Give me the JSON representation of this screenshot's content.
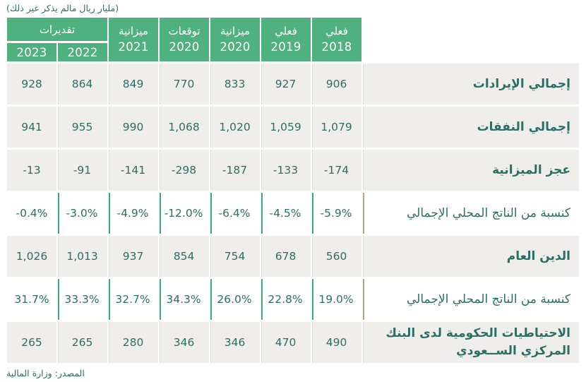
{
  "note_top": "(مليار ريال مالم يذكر غير ذلك)",
  "source": "المصدر: وزارة المالية",
  "colors": {
    "header_green": "#4FB080",
    "teal_text": "#2B6E66",
    "gray_row_bg": "#EFEEEB",
    "gray_row_divider": "#DBDAD7",
    "white_row_divider_green": "#3BA878",
    "label_divider_tan": "#B3A284"
  },
  "chart_data": {
    "type": "table",
    "unit_note": "(مليار ريال مالم يذكر غير ذلك)",
    "source": "المصدر: وزارة المالية",
    "header": {
      "group_label": "تقديرات",
      "single_columns": [
        {
          "label": "فعلي",
          "year": "2018"
        },
        {
          "label": "فعلي",
          "year": "2019"
        },
        {
          "label": "ميزانية",
          "year": "2020"
        },
        {
          "label": "توقعات",
          "year": "2020"
        },
        {
          "label": "ميزانية",
          "year": "2021"
        }
      ],
      "group_years": [
        "2022",
        "2023"
      ]
    },
    "rows": [
      {
        "label": "إجمالي الإيرادات",
        "values": [
          "906",
          "927",
          "833",
          "770",
          "849",
          "864",
          "928"
        ]
      },
      {
        "label": "إجمالي النفقات",
        "values": [
          "1,079",
          "1,059",
          "1,020",
          "1,068",
          "990",
          "955",
          "941"
        ]
      },
      {
        "label": "عجز الميزانية",
        "values": [
          "-174",
          "-133",
          "-187",
          "-298",
          "-141",
          "-91",
          "-13"
        ]
      },
      {
        "label": "كنسبة من الناتج المحلي الإجمالي",
        "values": [
          "-5.9%",
          "-4.5%",
          "-6.4%",
          "-12.0%",
          "-4.9%",
          "-3.0%",
          "-0.4%"
        ]
      },
      {
        "label": "الدين العام",
        "values": [
          "560",
          "678",
          "754",
          "854",
          "937",
          "1,013",
          "1,026"
        ]
      },
      {
        "label": "كنسبة من الناتج المحلي الإجمالي",
        "values": [
          "19.0%",
          "22.8%",
          "26.0%",
          "34.3%",
          "32.7%",
          "33.3%",
          "31.7%"
        ]
      },
      {
        "label": "الاحتياطيات الحكومية لدى البنك المركزي الســعودي",
        "values": [
          "490",
          "470",
          "346",
          "346",
          "280",
          "265",
          "265"
        ]
      }
    ]
  }
}
